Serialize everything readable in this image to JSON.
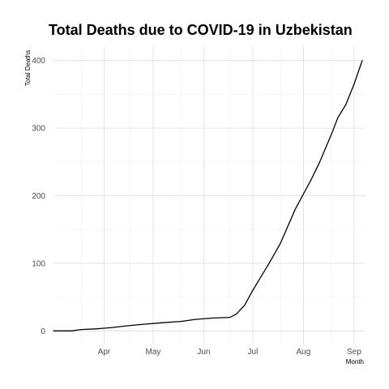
{
  "chart_data": {
    "type": "line",
    "title": "Total Deaths due to COVID-19 in Uzbekistan",
    "xlabel": "Month",
    "ylabel": "Total Deaths",
    "grid": true,
    "x_ticks": [
      "Apr",
      "May",
      "Jun",
      "Jul",
      "Aug",
      "Sep"
    ],
    "y_ticks": [
      0,
      100,
      200,
      300,
      400
    ],
    "xlim": [
      "2020-03-15",
      "2020-09-22"
    ],
    "ylim": [
      -20,
      420
    ],
    "series": [
      {
        "x": [
          "2020-03-15",
          "2020-03-20",
          "2020-03-26",
          "2020-04-01",
          "2020-04-10",
          "2020-04-20",
          "2020-05-01",
          "2020-05-10",
          "2020-05-20",
          "2020-06-01",
          "2020-06-10",
          "2020-06-20",
          "2020-07-01",
          "2020-07-05",
          "2020-07-10",
          "2020-07-15",
          "2020-07-20",
          "2020-07-25",
          "2020-08-01",
          "2020-08-10",
          "2020-08-20",
          "2020-08-25",
          "2020-09-01",
          "2020-09-05",
          "2020-09-10",
          "2020-09-15",
          "2020-09-20"
        ],
        "y": [
          0,
          0,
          0,
          2,
          3,
          5,
          8,
          10,
          12,
          14,
          17,
          19,
          20,
          25,
          38,
          60,
          80,
          100,
          130,
          180,
          225,
          250,
          290,
          315,
          335,
          365,
          400
        ]
      }
    ]
  }
}
